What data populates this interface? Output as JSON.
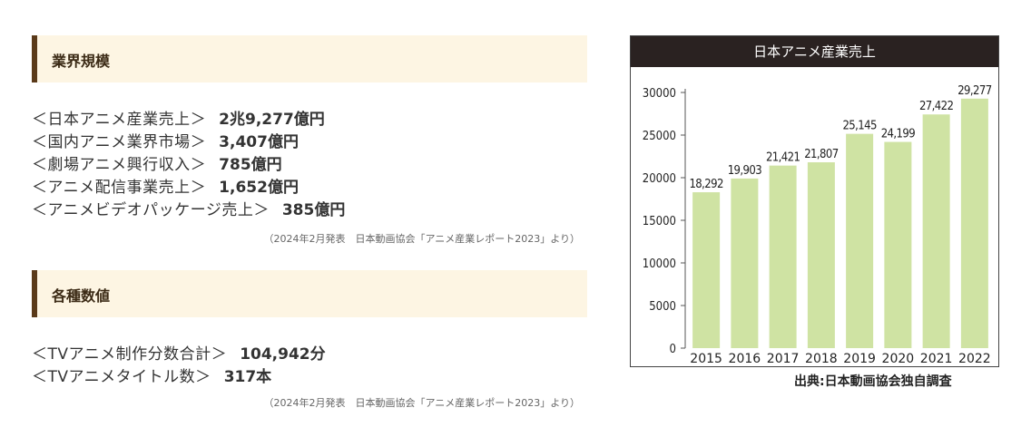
{
  "industry_scale": {
    "heading": "業界規模",
    "items": [
      {
        "label": "＜日本アニメ産業売上＞",
        "value": "2兆9,277億円"
      },
      {
        "label": "＜国内アニメ業界市場＞",
        "value": "3,407億円"
      },
      {
        "label": "＜劇場アニメ興行収入＞",
        "value": "785億円"
      },
      {
        "label": "＜アニメ配信事業売上＞",
        "value": "1,652億円"
      },
      {
        "label": "＜アニメビデオパッケージ売上＞",
        "value": "385億円"
      }
    ],
    "source": "（2024年2月発表　日本動画協会「アニメ産業レポート2023」より）"
  },
  "various_figures": {
    "heading": "各種数値",
    "items": [
      {
        "label": "＜TVアニメ制作分数合計＞",
        "value": "104,942分"
      },
      {
        "label": "＜TVアニメタイトル数＞",
        "value": "317本"
      }
    ],
    "source": "（2024年2月発表　日本動画協会「アニメ産業レポート2023」より）"
  },
  "chart_data": {
    "type": "bar",
    "title": "日本アニメ産業売上",
    "categories": [
      "2015",
      "2016",
      "2017",
      "2018",
      "2019",
      "2020",
      "2021",
      "2022"
    ],
    "values": [
      18292,
      19903,
      21421,
      21807,
      25145,
      24199,
      27422,
      29277
    ],
    "value_labels": [
      "18,292",
      "19,903",
      "21,421",
      "21,807",
      "25,145",
      "24,199",
      "27,422",
      "29,277"
    ],
    "ylim": [
      0,
      30000
    ],
    "yticks": [
      0,
      5000,
      10000,
      15000,
      20000,
      25000,
      30000
    ],
    "xlabel": "",
    "ylabel": "",
    "grid": false,
    "bar_color": "#cfe3a3",
    "source": "出典:日本動画協会独自調査"
  },
  "colors": {
    "header_bg": "#fdf5e3",
    "header_accent": "#5a3a1a",
    "chart_title_bg": "#2a2221"
  }
}
